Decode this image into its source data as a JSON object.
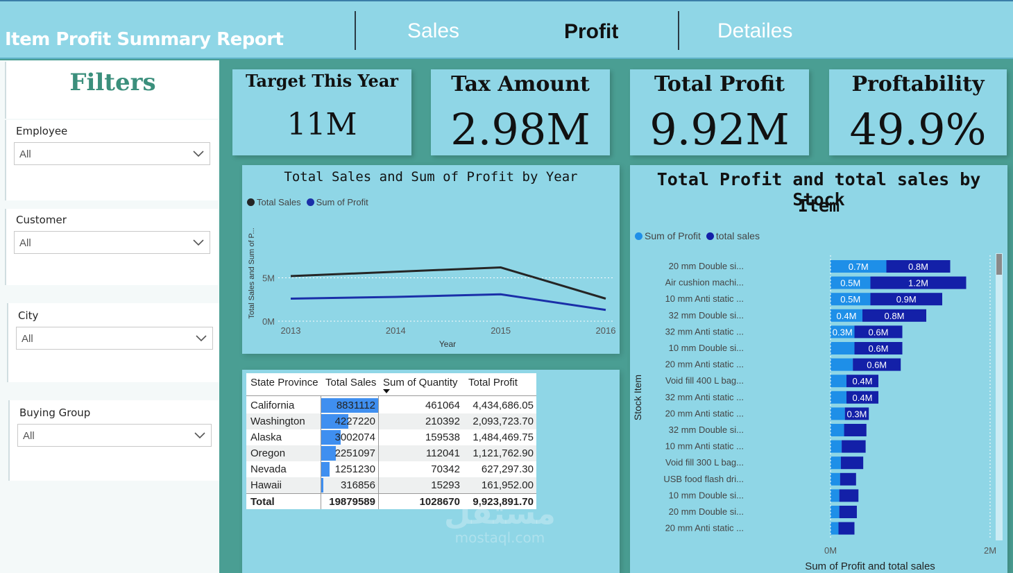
{
  "header": {
    "title": "Item Profit Summary Report",
    "tabs": [
      {
        "label": "Sales"
      },
      {
        "label": "Profit"
      },
      {
        "label": "Detailes"
      }
    ]
  },
  "filters": {
    "title": "Filters",
    "slicers": [
      {
        "label": "Employee",
        "value": "All"
      },
      {
        "label": "Customer",
        "value": "All"
      },
      {
        "label": "City",
        "value": "All"
      },
      {
        "label": "Buying Group",
        "value": "All"
      }
    ]
  },
  "kpis": [
    {
      "label": "Target This Year",
      "value": "11M"
    },
    {
      "label": "Tax Amount",
      "value": "2.98M"
    },
    {
      "label": "Total Profit",
      "value": "9.92M"
    },
    {
      "label": "Proftability",
      "value": "49.9%"
    }
  ],
  "colors": {
    "header_bg": "#8fd6e6",
    "page_bg": "#4a9e93",
    "total_sales_line": "#252525",
    "profit_line": "#1a2fa8",
    "profit_bar": "#1e8fe8",
    "sales_bar": "#1320a8"
  },
  "line_chart": {
    "title": "Total Sales and Sum of Profit by Year",
    "legend": [
      "Total Sales",
      "Sum of Profit"
    ],
    "ylabel": "Total Sales and Sum of P...",
    "xlabel": "Year",
    "y_ticks": [
      "5M",
      "0M"
    ],
    "x_ticks": [
      "2013",
      "2014",
      "2015",
      "2016"
    ]
  },
  "bar_chart": {
    "title_line1": "Total Profit and total sales by Stock",
    "title_line2": "Item",
    "legend": [
      "Sum of Profit",
      "total sales"
    ],
    "ylabel": "Stock Item",
    "xlabel": "Sum of Profit and total sales",
    "x_ticks": [
      "0M",
      "2M"
    ]
  },
  "chart_data": [
    {
      "type": "line",
      "title": "Total Sales and Sum of Profit by Year",
      "x": [
        "2013",
        "2014",
        "2015",
        "2016"
      ],
      "series": [
        {
          "name": "Total Sales",
          "values": [
            5.2,
            5.7,
            6.2,
            2.6
          ]
        },
        {
          "name": "Sum of Profit",
          "values": [
            2.6,
            2.8,
            3.1,
            1.3
          ]
        }
      ],
      "xlabel": "Year",
      "ylabel": "Total Sales and Sum of P...",
      "ylim": [
        0,
        10
      ],
      "grid": true,
      "legend": "top-left"
    },
    {
      "type": "bar",
      "orientation": "horizontal",
      "stacked": true,
      "title": "Total Profit and total sales by Stock Item",
      "categories": [
        "20 mm Double si...",
        "Air cushion machi...",
        "10 mm Anti static ...",
        "32 mm Double si...",
        "32 mm Anti static ...",
        "10 mm Double si...",
        "20 mm Anti static ...",
        "Void fill 400 L bag...",
        "32 mm Anti static ...",
        "20 mm Anti static ...",
        "32 mm Double si...",
        "10 mm Anti static ...",
        "Void fill 300 L bag...",
        "USB food flash dri...",
        "10 mm Double si...",
        "20 mm Double si...",
        "20 mm Anti static ..."
      ],
      "series": [
        {
          "name": "Sum of Profit",
          "values": [
            0.7,
            0.5,
            0.5,
            0.4,
            0.3,
            0.3,
            0.28,
            0.2,
            0.2,
            0.18,
            0.17,
            0.14,
            0.13,
            0.12,
            0.11,
            0.11,
            0.1
          ],
          "labels": [
            "0.7M",
            "0.5M",
            "0.5M",
            "0.4M",
            "0.3M",
            "",
            "",
            "",
            "",
            "",
            "",
            "",
            "",
            "",
            "",
            "",
            ""
          ]
        },
        {
          "name": "total sales",
          "values": [
            0.8,
            1.2,
            0.9,
            0.8,
            0.6,
            0.6,
            0.6,
            0.4,
            0.4,
            0.3,
            0.28,
            0.3,
            0.28,
            0.2,
            0.24,
            0.22,
            0.2
          ],
          "labels": [
            "0.8M",
            "1.2M",
            "0.9M",
            "0.8M",
            "0.6M",
            "0.6M",
            "0.6M",
            "0.4M",
            "0.4M",
            "0.3M",
            "",
            "",
            "",
            "",
            "",
            "",
            ""
          ]
        }
      ],
      "xlabel": "Sum of Profit and total sales",
      "ylabel": "Stock Item",
      "xlim": [
        0,
        2.1
      ],
      "legend": "top-left"
    },
    {
      "type": "table",
      "columns": [
        "State Province",
        "Total Sales",
        "Sum of Quantity",
        "Total Profit"
      ],
      "rows": [
        [
          "California",
          "8831112",
          "461064",
          "4,434,686.05"
        ],
        [
          "Washington",
          "4227220",
          "210392",
          "2,093,723.70"
        ],
        [
          "Alaska",
          "3002074",
          "159538",
          "1,484,469.75"
        ],
        [
          "Oregon",
          "2251097",
          "112041",
          "1,121,762.90"
        ],
        [
          "Nevada",
          "1251230",
          "70342",
          "627,297.30"
        ],
        [
          "Hawaii",
          "316856",
          "15293",
          "161,952.00"
        ]
      ],
      "sales_values": [
        8831112,
        4227220,
        3002074,
        2251097,
        1251230,
        316856
      ],
      "total": [
        "Total",
        "19879589",
        "1028670",
        "9,923,891.70"
      ]
    }
  ],
  "watermark": {
    "arabic": "مستقل",
    "latin": "mostaql.com"
  }
}
